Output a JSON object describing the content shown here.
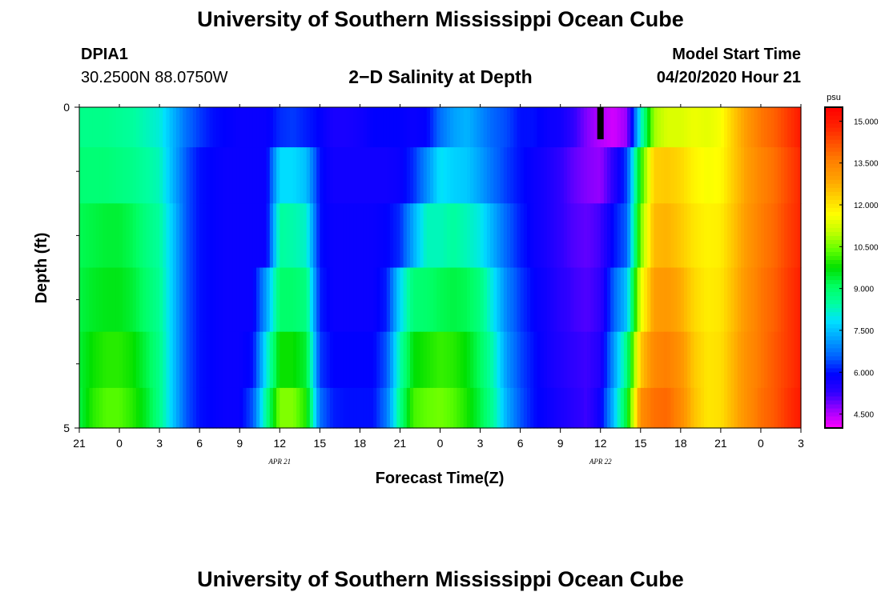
{
  "header": {
    "title": "University of Southern Mississippi Ocean Cube",
    "station_id": "DPIA1",
    "station_coords": "30.2500N 88.0750W",
    "plot_title": "2−D Salinity at Depth",
    "model_start_label": "Model Start Time",
    "model_start_value": "04/20/2020 Hour 21"
  },
  "footer": {
    "title": "University of Southern Mississippi Ocean Cube"
  },
  "chart_data": {
    "type": "heatmap",
    "title": "2−D Salinity at Depth",
    "xlabel": "Forecast Time(Z)",
    "ylabel": "Depth (ft)",
    "x_tick_labels": [
      "21",
      "0",
      "3",
      "6",
      "9",
      "12",
      "15",
      "18",
      "21",
      "0",
      "3",
      "6",
      "9",
      "12",
      "15",
      "18",
      "21",
      "0",
      "3"
    ],
    "x_date_labels": [
      {
        "label": "APR 21",
        "at_tick_index": 5
      },
      {
        "label": "APR 22",
        "at_tick_index": 13
      }
    ],
    "x_range_hours": [
      0,
      54
    ],
    "y_range_ft": [
      0,
      5
    ],
    "y_tick_labels": [
      {
        "value": 0,
        "label": "0"
      },
      {
        "value": 5,
        "label": "5"
      }
    ],
    "y_minor_ticks_ft": [
      1,
      2,
      3,
      4
    ],
    "colorbar": {
      "unit": "psu",
      "min": 4.0,
      "max": 15.5,
      "tick_labels": [
        "15.000",
        "13.500",
        "12.000",
        "10.500",
        "9.000",
        "7.500",
        "6.000",
        "4.500"
      ],
      "colors": [
        "#ff00ff",
        "#a000ff",
        "#3000ff",
        "#0000ff",
        "#0060ff",
        "#00a0ff",
        "#00e0ff",
        "#00ffa0",
        "#00ff60",
        "#00e000",
        "#60ff00",
        "#c0ff00",
        "#ffff00",
        "#ffd000",
        "#ffa000",
        "#ff8000",
        "#ff5000",
        "#ff2000",
        "#ff0000"
      ]
    },
    "missing_data": [
      {
        "hour": 39.0,
        "depth_from_ft": 0,
        "depth_to_ft": 0.5
      }
    ],
    "depth_levels_ft": [
      0.25,
      1.0,
      2.0,
      3.0,
      4.0,
      4.75
    ],
    "time_anchor_hours": [
      0,
      1,
      2,
      3,
      4,
      5,
      6,
      7,
      8,
      9,
      10,
      11,
      12,
      13,
      14,
      15,
      16,
      17,
      18,
      19,
      20,
      21,
      22,
      23,
      24,
      25,
      26,
      27,
      28,
      29,
      30,
      31,
      32,
      33,
      34,
      35,
      36,
      37,
      38,
      39,
      40,
      41,
      42,
      43,
      44,
      45,
      46,
      47,
      48,
      49,
      50,
      51,
      52,
      53,
      54
    ],
    "series": [
      {
        "name": "depth 0.25 ft",
        "values": [
          8.7,
          8.7,
          8.7,
          8.6,
          8.5,
          8.3,
          8.1,
          7.4,
          6.7,
          6.3,
          6.0,
          5.9,
          5.8,
          5.8,
          5.8,
          6.2,
          6.3,
          6.1,
          5.9,
          5.6,
          5.6,
          5.7,
          5.9,
          5.9,
          5.9,
          5.8,
          5.9,
          6.7,
          7.2,
          7.4,
          7.0,
          6.6,
          6.4,
          6.0,
          6.0,
          5.8,
          5.7,
          5.3,
          4.8,
          4.5,
          4.3,
          4.7,
          8.1,
          10.8,
          11.3,
          11.3,
          11.5,
          11.4,
          11.6,
          12.4,
          13.1,
          13.7,
          14.0,
          14.5,
          15.0
        ]
      },
      {
        "name": "depth 1 ft",
        "values": [
          8.9,
          8.9,
          8.9,
          8.8,
          8.7,
          8.5,
          8.3,
          7.4,
          6.5,
          6.0,
          5.9,
          5.8,
          5.8,
          5.8,
          5.8,
          7.8,
          7.8,
          7.5,
          6.0,
          5.7,
          5.7,
          5.7,
          5.7,
          5.7,
          5.8,
          6.2,
          7.0,
          7.9,
          7.7,
          7.6,
          7.2,
          6.7,
          6.3,
          6.0,
          5.8,
          5.6,
          5.3,
          5.0,
          4.8,
          4.7,
          5.4,
          6.4,
          9.9,
          12.3,
          12.4,
          12.2,
          11.8,
          11.6,
          11.7,
          12.4,
          13.0,
          13.5,
          13.8,
          14.3,
          14.8
        ]
      },
      {
        "name": "depth 2 ft",
        "values": [
          9.2,
          9.3,
          9.4,
          9.4,
          9.2,
          8.8,
          8.5,
          7.6,
          6.5,
          6.0,
          5.9,
          5.8,
          5.8,
          5.8,
          5.8,
          8.5,
          8.4,
          8.2,
          6.0,
          5.8,
          5.8,
          5.8,
          5.8,
          5.9,
          6.2,
          7.3,
          8.3,
          8.3,
          8.5,
          8.3,
          8.0,
          7.3,
          6.6,
          6.1,
          5.8,
          5.6,
          5.3,
          5.1,
          5.0,
          5.2,
          6.0,
          6.6,
          10.5,
          12.6,
          12.7,
          12.4,
          12.0,
          11.8,
          11.9,
          12.5,
          13.1,
          13.6,
          13.9,
          14.4,
          14.8
        ]
      },
      {
        "name": "depth 3 ft",
        "values": [
          9.3,
          9.5,
          9.6,
          9.6,
          9.4,
          9.0,
          8.6,
          7.6,
          6.5,
          6.0,
          5.9,
          5.8,
          5.8,
          5.8,
          7.2,
          9.0,
          9.0,
          8.8,
          6.1,
          5.8,
          5.8,
          5.8,
          5.8,
          6.1,
          7.8,
          8.9,
          9.0,
          9.2,
          9.3,
          9.2,
          8.8,
          7.9,
          6.9,
          6.3,
          5.9,
          5.7,
          5.4,
          5.2,
          5.1,
          5.3,
          6.6,
          7.6,
          11.4,
          13.0,
          13.1,
          12.8,
          12.2,
          11.9,
          12.0,
          12.6,
          13.2,
          13.7,
          14.0,
          14.5,
          14.9
        ]
      },
      {
        "name": "depth 4 ft",
        "values": [
          9.4,
          9.8,
          10.0,
          10.0,
          9.8,
          9.3,
          8.7,
          7.6,
          6.5,
          6.0,
          5.9,
          5.8,
          5.8,
          6.0,
          8.0,
          9.8,
          9.8,
          9.4,
          6.3,
          5.9,
          5.9,
          5.9,
          5.9,
          6.5,
          8.4,
          9.7,
          9.9,
          10.1,
          10.0,
          9.7,
          9.1,
          8.3,
          7.1,
          6.4,
          6.0,
          5.7,
          5.5,
          5.3,
          5.2,
          5.5,
          7.1,
          8.8,
          12.4,
          13.4,
          13.6,
          13.2,
          12.4,
          12.0,
          12.1,
          12.7,
          13.3,
          13.7,
          14.1,
          14.5,
          14.9
        ]
      },
      {
        "name": "depth 4.75 ft",
        "values": [
          9.3,
          10.0,
          10.3,
          10.3,
          10.0,
          9.5,
          8.7,
          7.6,
          6.5,
          6.0,
          5.9,
          5.8,
          5.8,
          6.5,
          8.6,
          10.6,
          10.6,
          9.9,
          6.7,
          6.1,
          6.0,
          6.0,
          6.0,
          6.8,
          8.7,
          10.2,
          10.4,
          10.5,
          10.3,
          9.9,
          9.3,
          8.5,
          7.3,
          6.5,
          6.0,
          5.8,
          5.6,
          5.4,
          5.2,
          5.8,
          7.5,
          9.5,
          13.3,
          13.8,
          13.9,
          13.4,
          12.5,
          12.0,
          12.1,
          12.7,
          13.3,
          13.8,
          14.1,
          14.6,
          15.0
        ]
      }
    ]
  }
}
